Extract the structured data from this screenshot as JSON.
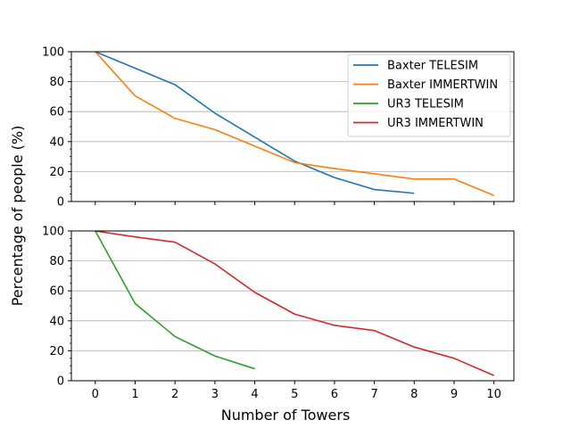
{
  "chart_data": {
    "type": "line",
    "xlabel": "Number of Towers",
    "ylabel": "Percentage of people (%)",
    "xlim": [
      -0.6,
      10.5
    ],
    "x_ticks": [
      0,
      1,
      2,
      3,
      4,
      5,
      6,
      7,
      8,
      9,
      10
    ],
    "legend": {
      "placement": "top-right"
    },
    "colors": {
      "Baxter TELESIM": "#1f77b4",
      "Baxter IMMERTWIN": "#ff7f0e",
      "UR3 TELESIM": "#2ca02c",
      "UR3 IMMERTWIN": "#d62728"
    },
    "panels": [
      {
        "ylim": [
          0,
          100
        ],
        "y_ticks": [
          0,
          20,
          40,
          60,
          80,
          100
        ],
        "grid": "horizontal",
        "series": [
          {
            "name": "Baxter TELESIM",
            "x": [
              0,
              1,
              2,
              3,
              4,
              5,
              6,
              7,
              8
            ],
            "values": [
              100,
              89,
              78,
              59,
              43,
              27,
              16,
              8,
              5.5
            ]
          },
          {
            "name": "Baxter IMMERTWIN",
            "x": [
              0,
              1,
              2,
              3,
              4,
              5,
              6,
              7,
              8,
              9,
              10
            ],
            "values": [
              100,
              70.5,
              55.5,
              48,
              37,
              26,
              22,
              18.5,
              15,
              15,
              4
            ]
          }
        ]
      },
      {
        "ylim": [
          0,
          100
        ],
        "y_ticks": [
          0,
          20,
          40,
          60,
          80,
          100
        ],
        "grid": "horizontal",
        "series": [
          {
            "name": "UR3 TELESIM",
            "x": [
              0,
              1,
              2,
              3,
              4
            ],
            "values": [
              100,
              51.5,
              29.5,
              16.5,
              8
            ]
          },
          {
            "name": "UR3 IMMERTWIN",
            "x": [
              0,
              1,
              2,
              3,
              4,
              5,
              6,
              7,
              8,
              9,
              10
            ],
            "values": [
              100,
              96,
              92.5,
              78,
              59,
              44.5,
              37,
              33.5,
              22.5,
              15,
              3.5
            ]
          }
        ]
      }
    ]
  }
}
